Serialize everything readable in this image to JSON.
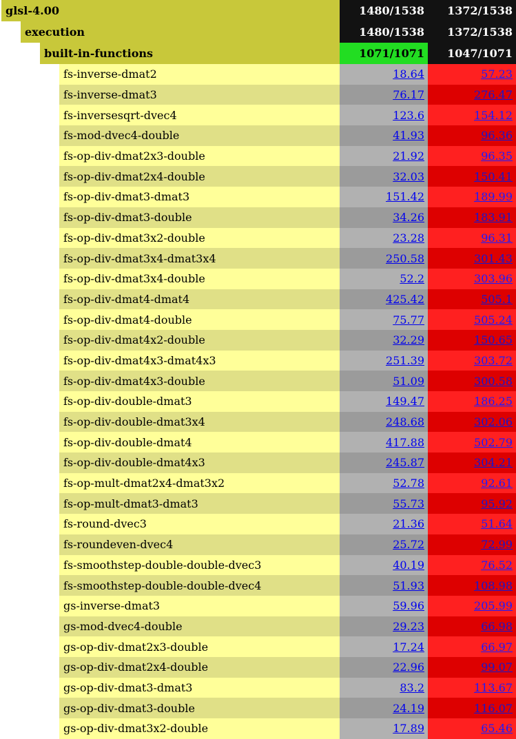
{
  "groups": [
    {
      "name": "glsl-4.00",
      "a": "1480/1538",
      "b": "1372/1538",
      "a_status": "dark"
    },
    {
      "name": "execution",
      "a": "1480/1538",
      "b": "1372/1538",
      "a_status": "dark"
    },
    {
      "name": "built-in-functions",
      "a": "1071/1071",
      "b": "1047/1071",
      "a_status": "pass"
    }
  ],
  "tests": [
    {
      "name": "fs-inverse-dmat2",
      "a": "18.64",
      "b": "57.23"
    },
    {
      "name": "fs-inverse-dmat3",
      "a": "76.17",
      "b": "276.47"
    },
    {
      "name": "fs-inversesqrt-dvec4",
      "a": "123.6",
      "b": "154.12"
    },
    {
      "name": "fs-mod-dvec4-double",
      "a": "41.93",
      "b": "96.36"
    },
    {
      "name": "fs-op-div-dmat2x3-double",
      "a": "21.92",
      "b": "96.35"
    },
    {
      "name": "fs-op-div-dmat2x4-double",
      "a": "32.03",
      "b": "150.41"
    },
    {
      "name": "fs-op-div-dmat3-dmat3",
      "a": "151.42",
      "b": "189.99"
    },
    {
      "name": "fs-op-div-dmat3-double",
      "a": "34.26",
      "b": "183.91"
    },
    {
      "name": "fs-op-div-dmat3x2-double",
      "a": "23.28",
      "b": "96.31"
    },
    {
      "name": "fs-op-div-dmat3x4-dmat3x4",
      "a": "250.58",
      "b": "301.43"
    },
    {
      "name": "fs-op-div-dmat3x4-double",
      "a": "52.2",
      "b": "303.96"
    },
    {
      "name": "fs-op-div-dmat4-dmat4",
      "a": "425.42",
      "b": "505.1"
    },
    {
      "name": "fs-op-div-dmat4-double",
      "a": "75.77",
      "b": "505.24"
    },
    {
      "name": "fs-op-div-dmat4x2-double",
      "a": "32.29",
      "b": "150.65"
    },
    {
      "name": "fs-op-div-dmat4x3-dmat4x3",
      "a": "251.39",
      "b": "303.72"
    },
    {
      "name": "fs-op-div-dmat4x3-double",
      "a": "51.09",
      "b": "300.58"
    },
    {
      "name": "fs-op-div-double-dmat3",
      "a": "149.47",
      "b": "186.25"
    },
    {
      "name": "fs-op-div-double-dmat3x4",
      "a": "248.68",
      "b": "302.06"
    },
    {
      "name": "fs-op-div-double-dmat4",
      "a": "417.88",
      "b": "502.79"
    },
    {
      "name": "fs-op-div-double-dmat4x3",
      "a": "245.87",
      "b": "304.21"
    },
    {
      "name": "fs-op-mult-dmat2x4-dmat3x2",
      "a": "52.78",
      "b": "92.61"
    },
    {
      "name": "fs-op-mult-dmat3-dmat3",
      "a": "55.73",
      "b": "95.92"
    },
    {
      "name": "fs-round-dvec3",
      "a": "21.36",
      "b": "51.64"
    },
    {
      "name": "fs-roundeven-dvec4",
      "a": "25.72",
      "b": "72.99"
    },
    {
      "name": "fs-smoothstep-double-double-dvec3",
      "a": "40.19",
      "b": "76.52"
    },
    {
      "name": "fs-smoothstep-double-double-dvec4",
      "a": "51.93",
      "b": "108.98"
    },
    {
      "name": "gs-inverse-dmat3",
      "a": "59.96",
      "b": "205.99"
    },
    {
      "name": "gs-mod-dvec4-double",
      "a": "29.23",
      "b": "66.98"
    },
    {
      "name": "gs-op-div-dmat2x3-double",
      "a": "17.24",
      "b": "66.97"
    },
    {
      "name": "gs-op-div-dmat2x4-double",
      "a": "22.96",
      "b": "99.07"
    },
    {
      "name": "gs-op-div-dmat3-dmat3",
      "a": "83.2",
      "b": "113.67"
    },
    {
      "name": "gs-op-div-dmat3-double",
      "a": "24.19",
      "b": "116.07"
    },
    {
      "name": "gs-op-div-dmat3x2-double",
      "a": "17.89",
      "b": "65.46"
    }
  ]
}
